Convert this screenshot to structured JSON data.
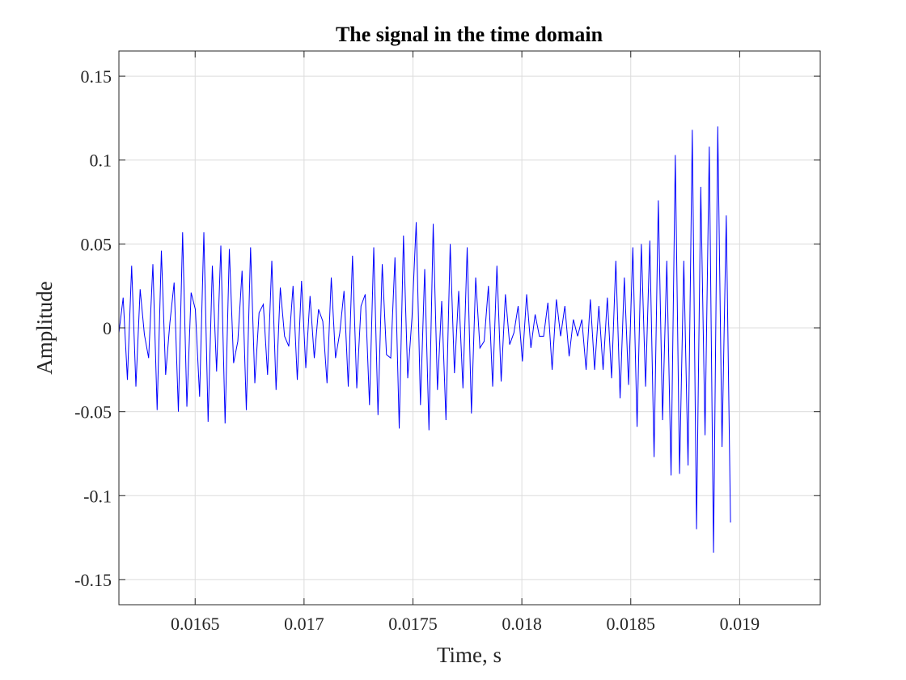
{
  "chart_data": {
    "type": "line",
    "title": "The signal in the time domain",
    "xlabel": "Time, s",
    "ylabel": "Amplitude",
    "xlim": [
      0.01615,
      0.01937
    ],
    "ylim": [
      -0.165,
      0.165
    ],
    "grid": true,
    "x_ticks": [
      0.0165,
      0.017,
      0.0175,
      0.018,
      0.0185,
      0.019
    ],
    "x_tick_labels": [
      "0.0165",
      "0.017",
      "0.0175",
      "0.018",
      "0.0185",
      "0.019"
    ],
    "y_ticks": [
      0.15,
      0.1,
      0.05,
      0,
      -0.05,
      -0.1,
      -0.15
    ],
    "y_tick_labels": [
      "0.15",
      "0.1",
      "0.05",
      "0",
      "-0.05",
      "-0.1",
      "-0.15"
    ],
    "series": [
      {
        "color": "#0000ff",
        "x_start": 0.01615,
        "x_step": 1.95e-05,
        "values": [
          -0.003,
          0.018,
          -0.031,
          0.037,
          -0.035,
          0.023,
          -0.004,
          -0.018,
          0.038,
          -0.049,
          0.046,
          -0.028,
          0.003,
          0.027,
          -0.05,
          0.057,
          -0.047,
          0.021,
          0.011,
          -0.041,
          0.057,
          -0.056,
          0.037,
          -0.026,
          0.049,
          -0.057,
          0.047,
          -0.021,
          -0.008,
          0.034,
          -0.049,
          0.048,
          -0.033,
          0.009,
          0.014,
          -0.028,
          0.04,
          -0.037,
          0.024,
          -0.005,
          -0.011,
          0.025,
          -0.031,
          0.028,
          -0.024,
          0.019,
          -0.018,
          0.011,
          0.004,
          -0.033,
          0.03,
          -0.018,
          -0.003,
          0.022,
          -0.035,
          0.043,
          -0.036,
          0.013,
          0.02,
          -0.046,
          0.048,
          -0.052,
          0.038,
          -0.016,
          -0.018,
          0.042,
          -0.06,
          0.055,
          -0.03,
          0.006,
          0.063,
          -0.046,
          0.035,
          -0.061,
          0.062,
          -0.037,
          0.016,
          -0.055,
          0.05,
          -0.027,
          0.022,
          -0.036,
          0.048,
          -0.051,
          0.03,
          -0.012,
          -0.008,
          0.025,
          -0.035,
          0.037,
          -0.032,
          0.02,
          -0.01,
          -0.003,
          0.013,
          -0.02,
          0.02,
          -0.012,
          0.008,
          -0.005,
          -0.005,
          0.015,
          -0.025,
          0.017,
          -0.005,
          0.013,
          -0.017,
          0.005,
          -0.005,
          0.005,
          -0.025,
          0.017,
          -0.025,
          0.013,
          -0.025,
          0.018,
          -0.03,
          0.04,
          -0.042,
          0.03,
          -0.034,
          0.048,
          -0.059,
          0.05,
          -0.035,
          0.052,
          -0.077,
          0.076,
          -0.055,
          0.04,
          -0.088,
          0.103,
          -0.087,
          0.04,
          -0.082,
          0.118,
          -0.12,
          0.084,
          -0.064,
          0.108,
          -0.134,
          0.12,
          -0.071,
          0.067,
          -0.116
        ]
      }
    ]
  }
}
